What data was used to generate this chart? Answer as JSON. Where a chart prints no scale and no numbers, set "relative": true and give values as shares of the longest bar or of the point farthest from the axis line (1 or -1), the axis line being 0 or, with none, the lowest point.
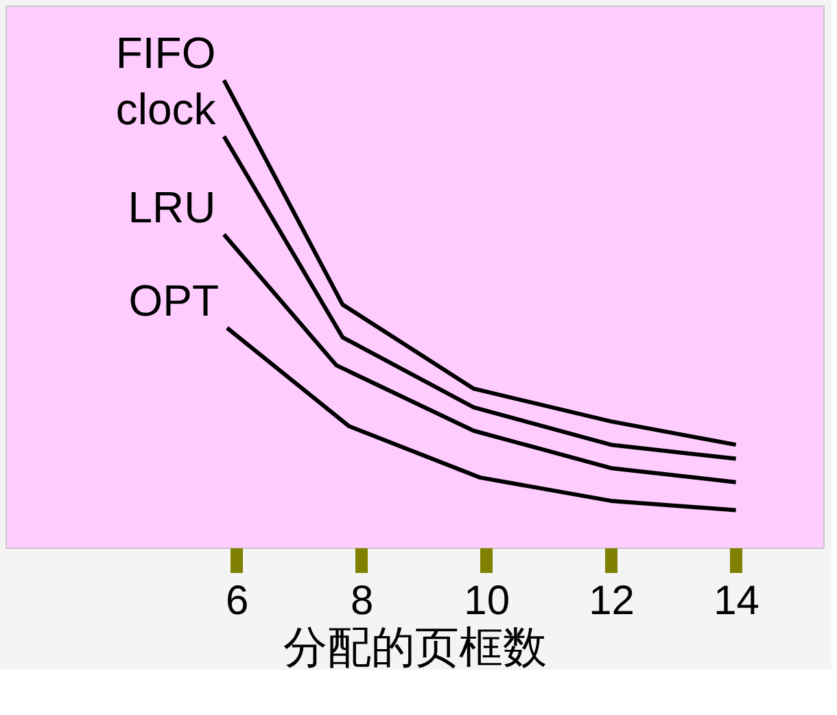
{
  "chart_data": {
    "type": "line",
    "relative": true,
    "xlabel": "分配的页框数",
    "xlim": [
      2.3,
      15.4
    ],
    "xticks": [
      6,
      8,
      10,
      12,
      14
    ],
    "grid": false,
    "marker": "none",
    "line_style": "solid",
    "series": [
      {
        "name": "FIFO",
        "color": "#000000",
        "x": [
          5.8,
          7.7,
          9.8,
          12,
          14
        ],
        "values": [
          1,
          0.52,
          0.34,
          0.27,
          0.22
        ]
      },
      {
        "name": "clock",
        "color": "#000000",
        "x": [
          5.8,
          7.7,
          9.8,
          12,
          14
        ],
        "values": [
          0.88,
          0.45,
          0.3,
          0.22,
          0.19
        ]
      },
      {
        "name": "LRU",
        "color": "#000000",
        "x": [
          5.8,
          7.6,
          9.8,
          12,
          14
        ],
        "values": [
          0.67,
          0.39,
          0.25,
          0.17,
          0.14
        ]
      },
      {
        "name": "OPT",
        "color": "#000000",
        "x": [
          5.85,
          7.8,
          9.9,
          12,
          14
        ],
        "values": [
          0.47,
          0.26,
          0.15,
          0.1,
          0.08
        ]
      }
    ]
  }
}
